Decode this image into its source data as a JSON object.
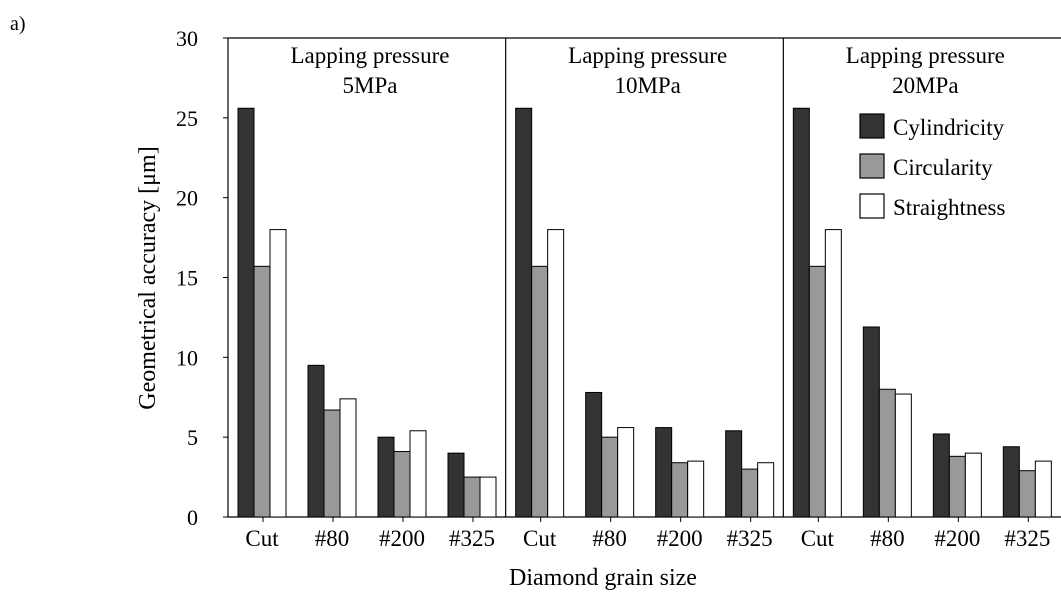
{
  "panel_label": "a)",
  "chart_data": {
    "type": "bar",
    "title": "",
    "xlabel": "Diamond grain size",
    "ylabel": "Geometrical accuracy [μm]",
    "ylim": [
      0,
      30
    ],
    "yticks": [
      0,
      5,
      10,
      15,
      20,
      25,
      30
    ],
    "grid": false,
    "legend_position": "top-right",
    "categories": [
      "Cut",
      "#80",
      "#200",
      "#325"
    ],
    "groups": [
      {
        "title": [
          "Lapping pressure",
          "5MPa"
        ],
        "series_values": {
          "Cylindricity": [
            25.6,
            9.5,
            5.0,
            4.0
          ],
          "Circularity": [
            15.7,
            6.7,
            4.1,
            2.5
          ],
          "Straightness": [
            18.0,
            7.4,
            5.4,
            2.5
          ]
        }
      },
      {
        "title": [
          "Lapping pressure",
          "10MPa"
        ],
        "series_values": {
          "Cylindricity": [
            25.6,
            7.8,
            5.6,
            5.4
          ],
          "Circularity": [
            15.7,
            5.0,
            3.4,
            3.0
          ],
          "Straightness": [
            18.0,
            5.6,
            3.5,
            3.4
          ]
        }
      },
      {
        "title": [
          "Lapping pressure",
          "20MPa"
        ],
        "series_values": {
          "Cylindricity": [
            25.6,
            11.9,
            5.2,
            4.4
          ],
          "Circularity": [
            15.7,
            8.0,
            3.8,
            2.9
          ],
          "Straightness": [
            18.0,
            7.7,
            4.0,
            3.5
          ]
        }
      }
    ],
    "series": [
      {
        "name": "Cylindricity",
        "color": "#333333"
      },
      {
        "name": "Circularity",
        "color": "#999999"
      },
      {
        "name": "Straightness",
        "color": "#ffffff"
      }
    ]
  }
}
